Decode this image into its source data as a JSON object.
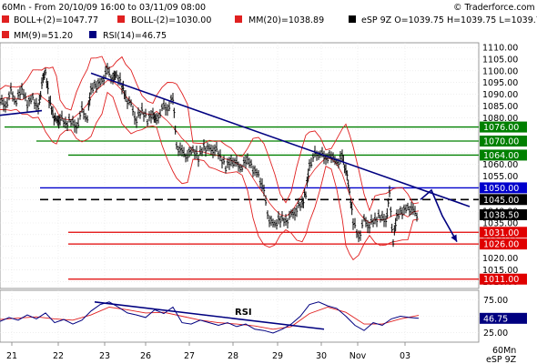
{
  "header": {
    "period": "60Mn - From 20/10/09 16:00 to 03/11/09 08:00",
    "source": "© Traderforce.com"
  },
  "legend": [
    {
      "label": "BOLL+(2)=1047.77",
      "color": "#e02020"
    },
    {
      "label": "BOLL-(2)=1030.00",
      "color": "#e02020"
    },
    {
      "label": "MM(20)=1038.89",
      "color": "#e02020"
    },
    {
      "label": "eSP 9Z O=1039.75 H=1039.75 L=1039.75",
      "color": "#000000"
    },
    {
      "label": "MM(9)=51.20",
      "color": "#e02020"
    },
    {
      "label": "RSI(14)=46.75",
      "color": "#000080"
    }
  ],
  "footer": {
    "timeframe": "60Mn",
    "symbol": "eSP 9Z"
  },
  "chart_data": {
    "type": "candlestick",
    "ylim": [
      1007,
      1112
    ],
    "yticks": [
      1010,
      1015,
      1020,
      1025,
      1030,
      1035,
      1040,
      1045,
      1050,
      1055,
      1060,
      1065,
      1070,
      1075,
      1080,
      1085,
      1090,
      1095,
      1100,
      1105,
      1110
    ],
    "x_labels": [
      "21",
      "22",
      "23",
      "26",
      "27",
      "28",
      "29",
      "30",
      "Nov",
      "03"
    ],
    "grid": true,
    "levels": [
      {
        "value": 1076.0,
        "label": "1076.00",
        "color": "#008000",
        "style": "solid"
      },
      {
        "value": 1070.0,
        "label": "1070.00",
        "color": "#008000",
        "style": "solid"
      },
      {
        "value": 1064.0,
        "label": "1064.00",
        "color": "#008000",
        "style": "solid"
      },
      {
        "value": 1050.0,
        "label": "1050.00",
        "color": "#0000cc",
        "style": "solid"
      },
      {
        "value": 1045.0,
        "label": "1045.00",
        "color": "#000000",
        "style": "dashed"
      },
      {
        "value": 1031.0,
        "label": "1031.00",
        "color": "#e00000",
        "style": "solid"
      },
      {
        "value": 1026.0,
        "label": "1026.00",
        "color": "#e00000",
        "style": "solid"
      },
      {
        "value": 1011.0,
        "label": "1011.00",
        "color": "#e00000",
        "style": "solid"
      }
    ],
    "last_price": {
      "value": 1038.5,
      "label": "1038.50"
    },
    "price_path": [
      [
        0,
        1088
      ],
      [
        6,
        1085
      ],
      [
        12,
        1091
      ],
      [
        18,
        1087
      ],
      [
        24,
        1092
      ],
      [
        30,
        1086
      ],
      [
        36,
        1089
      ],
      [
        42,
        1083
      ],
      [
        46,
        1095
      ],
      [
        50,
        1099
      ],
      [
        54,
        1088
      ],
      [
        58,
        1082
      ],
      [
        62,
        1078
      ],
      [
        66,
        1080
      ],
      [
        72,
        1077
      ],
      [
        78,
        1079
      ],
      [
        84,
        1076
      ],
      [
        90,
        1083
      ],
      [
        96,
        1080
      ],
      [
        100,
        1092
      ],
      [
        106,
        1094
      ],
      [
        112,
        1096
      ],
      [
        118,
        1100
      ],
      [
        124,
        1097
      ],
      [
        128,
        1098
      ],
      [
        134,
        1094
      ],
      [
        138,
        1089
      ],
      [
        144,
        1085
      ],
      [
        150,
        1079
      ],
      [
        156,
        1083
      ],
      [
        162,
        1079
      ],
      [
        168,
        1082
      ],
      [
        172,
        1078
      ],
      [
        178,
        1085
      ],
      [
        184,
        1083
      ],
      [
        190,
        1089
      ],
      [
        194,
        1068
      ],
      [
        200,
        1065
      ],
      [
        206,
        1064
      ],
      [
        212,
        1066
      ],
      [
        218,
        1063
      ],
      [
        224,
        1068
      ],
      [
        230,
        1066
      ],
      [
        236,
        1067
      ],
      [
        242,
        1063
      ],
      [
        248,
        1059
      ],
      [
        254,
        1062
      ],
      [
        260,
        1060
      ],
      [
        266,
        1059
      ],
      [
        272,
        1062
      ],
      [
        278,
        1058
      ],
      [
        284,
        1056
      ],
      [
        290,
        1048
      ],
      [
        296,
        1036
      ],
      [
        302,
        1034
      ],
      [
        308,
        1037
      ],
      [
        314,
        1036
      ],
      [
        320,
        1038
      ],
      [
        326,
        1041
      ],
      [
        332,
        1043
      ],
      [
        336,
        1048
      ],
      [
        340,
        1060
      ],
      [
        346,
        1064
      ],
      [
        352,
        1065
      ],
      [
        358,
        1062
      ],
      [
        364,
        1064
      ],
      [
        370,
        1061
      ],
      [
        376,
        1063
      ],
      [
        380,
        1058
      ],
      [
        384,
        1048
      ],
      [
        388,
        1036
      ],
      [
        394,
        1029
      ],
      [
        400,
        1036
      ],
      [
        406,
        1034
      ],
      [
        412,
        1036
      ],
      [
        418,
        1038
      ],
      [
        424,
        1036
      ],
      [
        428,
        1047
      ],
      [
        432,
        1027
      ],
      [
        436,
        1038
      ],
      [
        442,
        1040
      ],
      [
        448,
        1042
      ],
      [
        454,
        1040
      ],
      [
        460,
        1038.5
      ]
    ],
    "projection": [
      [
        462,
        1045
      ],
      [
        474,
        1049
      ],
      [
        486,
        1038
      ],
      [
        502,
        1027
      ]
    ],
    "resistance_trendline": [
      [
        100,
        1099
      ],
      [
        516,
        1042
      ]
    ],
    "early_support_line": [
      [
        0,
        1081
      ],
      [
        46,
        1083
      ]
    ],
    "rsi_panel": {
      "ylim": [
        10,
        90
      ],
      "yticks": [
        25,
        50,
        75
      ],
      "yticks_labels": [
        "25.00",
        "50.00",
        "75.00"
      ],
      "current": {
        "value": 46.75,
        "label": "46.75"
      },
      "label": "RSI",
      "rsi": [
        [
          0,
          42
        ],
        [
          10,
          48
        ],
        [
          20,
          44
        ],
        [
          30,
          52
        ],
        [
          40,
          46
        ],
        [
          50,
          55
        ],
        [
          60,
          40
        ],
        [
          70,
          45
        ],
        [
          80,
          38
        ],
        [
          90,
          44
        ],
        [
          100,
          58
        ],
        [
          110,
          68
        ],
        [
          120,
          72
        ],
        [
          130,
          64
        ],
        [
          140,
          55
        ],
        [
          150,
          52
        ],
        [
          160,
          48
        ],
        [
          170,
          60
        ],
        [
          180,
          54
        ],
        [
          190,
          64
        ],
        [
          200,
          40
        ],
        [
          210,
          38
        ],
        [
          220,
          44
        ],
        [
          230,
          40
        ],
        [
          240,
          36
        ],
        [
          250,
          40
        ],
        [
          260,
          34
        ],
        [
          270,
          38
        ],
        [
          280,
          30
        ],
        [
          290,
          28
        ],
        [
          300,
          24
        ],
        [
          310,
          30
        ],
        [
          320,
          38
        ],
        [
          330,
          50
        ],
        [
          340,
          68
        ],
        [
          350,
          72
        ],
        [
          360,
          66
        ],
        [
          370,
          62
        ],
        [
          380,
          50
        ],
        [
          390,
          36
        ],
        [
          400,
          28
        ],
        [
          410,
          40
        ],
        [
          420,
          36
        ],
        [
          430,
          46
        ],
        [
          440,
          50
        ],
        [
          450,
          48
        ],
        [
          460,
          46.75
        ]
      ],
      "mm9": [
        [
          0,
          45
        ],
        [
          20,
          47
        ],
        [
          40,
          49
        ],
        [
          60,
          46
        ],
        [
          80,
          44
        ],
        [
          100,
          52
        ],
        [
          120,
          64
        ],
        [
          140,
          60
        ],
        [
          160,
          55
        ],
        [
          180,
          56
        ],
        [
          200,
          50
        ],
        [
          220,
          44
        ],
        [
          240,
          40
        ],
        [
          260,
          38
        ],
        [
          280,
          35
        ],
        [
          300,
          30
        ],
        [
          320,
          34
        ],
        [
          340,
          54
        ],
        [
          360,
          64
        ],
        [
          380,
          56
        ],
        [
          400,
          38
        ],
        [
          420,
          38
        ],
        [
          440,
          46
        ],
        [
          460,
          51.2
        ]
      ],
      "trendline": [
        [
          104,
          72
        ],
        [
          356,
          30
        ]
      ]
    }
  }
}
